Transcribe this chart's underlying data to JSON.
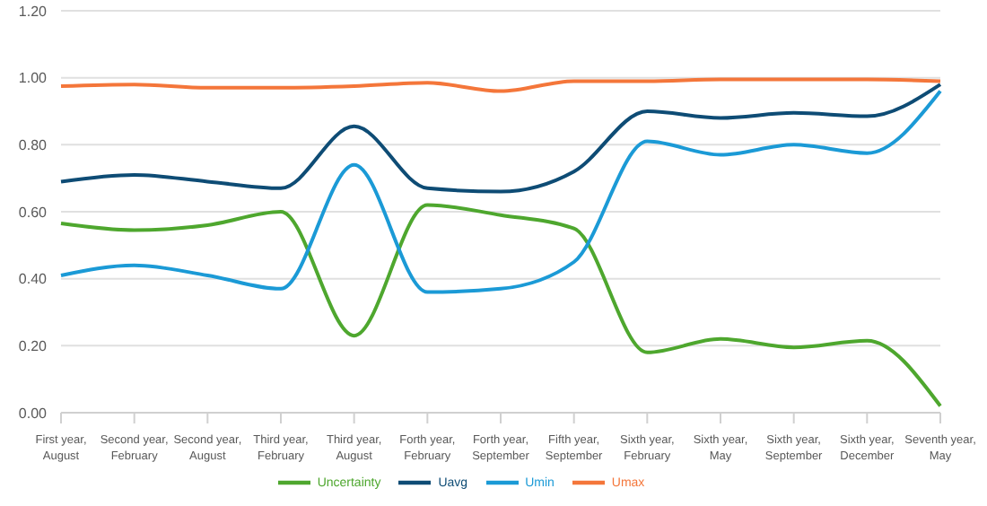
{
  "chart_data": {
    "type": "line",
    "categories": [
      "First year, August",
      "Second year, February",
      "Second year, August",
      "Third year, February",
      "Third year, August",
      "Forth year, February",
      "Forth year, September",
      "Fifth year, September",
      "Sixth year, February",
      "Sixth year, May",
      "Sixth year, September",
      "Sixth year, December",
      "Seventh year, May"
    ],
    "series": [
      {
        "name": "Uncertainty",
        "color": "#4ea72e",
        "values": [
          0.565,
          0.545,
          0.56,
          0.6,
          0.23,
          0.62,
          0.59,
          0.55,
          0.18,
          0.22,
          0.195,
          0.215,
          0.02
        ]
      },
      {
        "name": "Uavg",
        "color": "#0e4c75",
        "values": [
          0.69,
          0.71,
          0.69,
          0.67,
          0.855,
          0.67,
          0.66,
          0.72,
          0.9,
          0.88,
          0.895,
          0.885,
          0.98
        ]
      },
      {
        "name": "Umin",
        "color": "#1b9ad6",
        "values": [
          0.41,
          0.44,
          0.41,
          0.37,
          0.74,
          0.36,
          0.37,
          0.45,
          0.81,
          0.77,
          0.8,
          0.775,
          0.96
        ]
      },
      {
        "name": "Umax",
        "color": "#f4763a",
        "values": [
          0.975,
          0.98,
          0.97,
          0.97,
          0.975,
          0.985,
          0.96,
          0.99,
          0.99,
          0.995,
          0.995,
          0.995,
          0.99
        ]
      }
    ],
    "ylim": [
      0,
      1.2
    ],
    "yticks": [
      {
        "value": 0,
        "label": "0.00"
      },
      {
        "value": 0.2,
        "label": "0.20"
      },
      {
        "value": 0.4,
        "label": "0.40"
      },
      {
        "value": 0.6,
        "label": "0.60"
      },
      {
        "value": 0.8,
        "label": "0.80"
      },
      {
        "value": 1,
        "label": "1.00"
      },
      {
        "value": 1.2,
        "label": "1.20"
      }
    ],
    "grid": "y",
    "legend": "bottom",
    "marker": "none",
    "line_style": "solid"
  }
}
